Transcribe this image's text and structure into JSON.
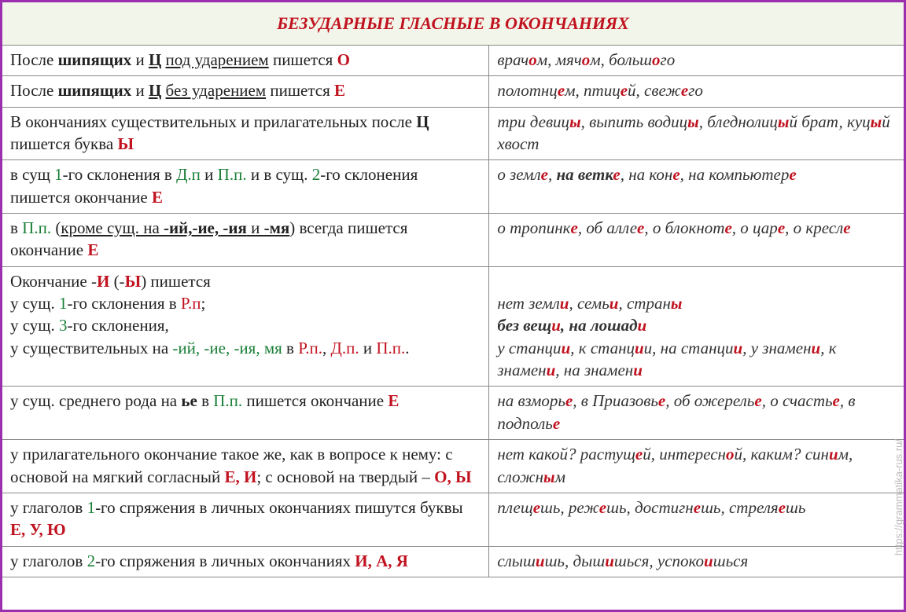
{
  "title": "БЕЗУДАРНЫЕ ГЛАСНЫЕ В ОКОНЧАНИЯХ",
  "watermark": "https://grammatika-rus.ru/",
  "rows": [
    {
      "leftHtml": "После <span class='b'>шипящих</span> и <span class='b u'>Ц</span> <span class='u'> под ударением</span> пишется <span class='redb'>О</span>",
      "rightHtml": "врач<span class='redb'>о</span>м, мяч<span class='redb'>о</span>м, больш<span class='redb'>о</span>го"
    },
    {
      "leftHtml": "После <span class='b'>шипящих</span> и <span class='b u'>Ц</span> <span class='u'> без ударением</span> пишется <span class='redb'>Е</span>",
      "rightHtml": "полотнц<span class='redb'>е</span>м, птиц<span class='redb'>е</span>й, свеж<span class='redb'>е</span>го"
    },
    {
      "leftHtml": "В окончаниях существительных и прилагательных после <span class='b'>Ц</span> пишется буква <span class='redb'>Ы</span>",
      "rightHtml": "три девиц<span class='redb'>ы</span>, выпить водиц<span class='redb'>ы</span>, бледнолиц<span class='redb'>ы</span>й брат, куц<span class='redb'>ы</span>й хвост"
    },
    {
      "leftHtml": "в сущ <span class='grn'>1</span>-го склонения в <span class='grn'>Д.п</span> и <span class='grn'>П.п.</span> и в сущ. <span class='grn'>2</span>-го склонения пишется окончание <span class='redb'>Е</span>",
      "rightHtml": "о земл<span class='redb'>е</span>, <span class='b'>на ветк<span class='redb'>е</span></span>, на кон<span class='redb'>е</span>, на компьютер<span class='redb'>е</span>"
    },
    {
      "leftHtml": "в <span class='grn'>П.п.</span> (<span class='u'>кроме сущ. на <span class='b'>-ий,-ие, -ия</span> и <span class='b'>-мя</span></span>) всегда пишется окончание <span class='redb'>Е</span>",
      "rightHtml": "о тропинк<span class='redb'>е</span>, об алле<span class='redb'>е</span>, о блокнот<span class='redb'>е</span>, о цар<span class='redb'>е</span>, о кресл<span class='redb'>е</span>"
    },
    {
      "leftHtml": "Окончание -<span class='redb'>И</span> (-<span class='redb'>Ы</span>) пишется<br>у сущ. <span class='grn'>1</span>-го склонения в <span class='red'>Р.п</span>;<br>у сущ. <span class='grn'>3</span>-го склонения,<br>у существительных на <span class='grn'>-ий, -ие, -ия, мя</span> в <span class='red'>Р.п.</span>, <span class='red'>Д.п.</span> и <span class='red'>П.п.</span>.",
      "rightHtml": "<br>нет земл<span class='redb'>и</span>, семь<span class='redb'>и</span>, стран<span class='redb'>ы</span><br><span class='b'>без вещ<span class='redb'>и</span>, на лошад<span class='redb'>и</span></span><br>у станци<span class='redb'>и</span>, к станц<span class='redb'>и</span>и, на станци<span class='redb'>и</span>, у знамен<span class='redb'>и</span>, к знамен<span class='redb'>и</span>, на знамен<span class='redb'>и</span>"
    },
    {
      "leftHtml": "у сущ. среднего рода на <span class='b'>ье</span> в <span class='grn'>П.п.</span> пишется окончание <span class='redb'>Е</span>",
      "rightHtml": "на взморь<span class='redb'>е</span>, в Приазовь<span class='redb'>е</span>, об ожерель<span class='redb'>е</span>, о счасть<span class='redb'>е</span>, в подполь<span class='redb'>е</span>"
    },
    {
      "leftHtml": "у прилагательного окончание такое же, как в вопросе к нему: с основой на мягкий согласный <span class='redb'>Е, И</span>; с основой на твердый – <span class='redb'>О, Ы</span>",
      "rightHtml": "нет какой? растущ<span class='redb'>е</span>й, интересн<span class='redb'>о</span>й, каким? син<span class='redb'>и</span>м, сложн<span class='redb'>ы</span>м"
    },
    {
      "leftHtml": "у глаголов <span class='grn'>1</span>-го спряжения в личных окончаниях пишутся буквы <span class='redb'>Е, У, Ю</span>",
      "rightHtml": "плещ<span class='redb'>е</span>шь, реж<span class='redb'>е</span>шь, достигн<span class='redb'>е</span>шь, стреля<span class='redb'>е</span>шь"
    },
    {
      "leftHtml": "у глаголов <span class='grn'>2</span>-го спряжения в личных окончаниях <span class='redb'>И, А, Я</span>",
      "rightHtml": "слыш<span class='redb'>и</span>шь, дыш<span class='redb'>и</span>шься, успоко<span class='redb'>и</span>шься"
    }
  ]
}
